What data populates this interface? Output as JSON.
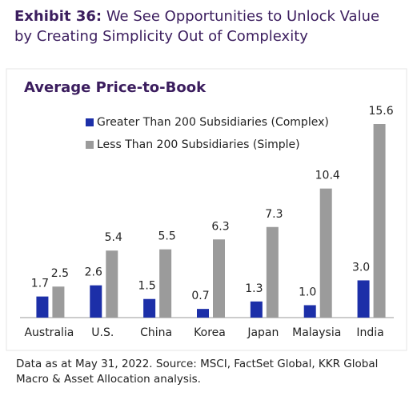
{
  "chart_data": {
    "type": "bar",
    "title_prefix": "Exhibit 36:",
    "title": "We See Opportunities to Unlock Value by Creating Simplicity Out of Complexity",
    "subtitle": "Average Price-to-Book",
    "categories": [
      "Australia",
      "U.S.",
      "China",
      "Korea",
      "Japan",
      "Malaysia",
      "India"
    ],
    "series": [
      {
        "name": "Greater Than 200 Subsidiaries (Complex)",
        "color": "#1c2fa8",
        "values": [
          1.7,
          2.6,
          1.5,
          0.7,
          1.3,
          1.0,
          3.0
        ],
        "value_labels": [
          "1.7",
          "2.6",
          "1.5",
          "0.7",
          "1.3",
          "1.0",
          "3.0"
        ]
      },
      {
        "name": "Less Than 200 Subsidiaries (Simple)",
        "color": "#9b9b9b",
        "values": [
          2.5,
          5.4,
          5.5,
          6.3,
          7.3,
          10.4,
          15.6
        ]
      }
    ],
    "source": "Data as at May 31, 2022. Source: MSCI, FactSet Global, KKR Global Macro & Asset Allocation analysis."
  }
}
